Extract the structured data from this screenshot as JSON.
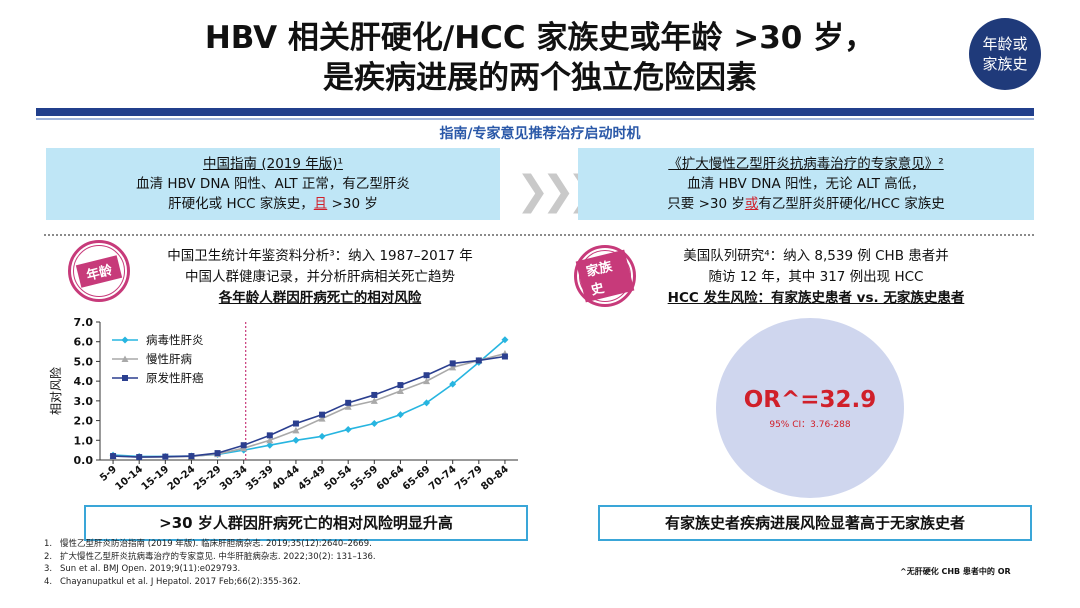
{
  "title": {
    "line1": "HBV 相关肝硬化/HCC 家族史或年龄 >30 岁，",
    "line2": "是疾病进展的两个独立危险因素"
  },
  "badge": {
    "line1": "年龄或",
    "line2": "家族史"
  },
  "subhead": "指南/专家意见推荐治疗启动时机",
  "guide_left": {
    "title": "中国指南 (2019 年版)¹",
    "line1": "血清 HBV DNA 阳性、ALT 正常，有乙型肝炎",
    "line2_pre": "肝硬化或 HCC 家族史，",
    "line2_red": "且",
    "line2_post": " >30 岁"
  },
  "guide_right": {
    "title": "《扩大慢性乙型肝炎抗病毒治疗的专家意见》²",
    "line1": "血清 HBV DNA 阳性，无论 ALT 高低，",
    "line2_pre": "只要 >30 岁",
    "line2_red": "或",
    "line2_post": "有乙型肝炎肝硬化/HCC 家族史"
  },
  "stamp_left": "年龄",
  "stamp_right": "家族史",
  "study_left": {
    "line1": "中国卫生统计年鉴资料分析³：纳入 1987–2017 年",
    "line2": "中国人群健康记录，并分析肝病相关死亡趋势",
    "line3": "各年龄人群因肝病死亡的相对风险"
  },
  "study_right": {
    "line1": "美国队列研究⁴：纳入 8,539 例 CHB 患者并",
    "line2": "随访 12 年，其中 317 例出现 HCC",
    "line3": "HCC 发生风险：有家族史患者 vs. 无家族史患者"
  },
  "or_value": "OR^=32.9",
  "or_ci": "95% CI：3.76-288",
  "concl_left": ">30 岁人群因肝病死亡的相对风险明显升高",
  "concl_right": "有家族史者疾病进展风险显著高于无家族史者",
  "refs": [
    {
      "n": "1.",
      "text": "慢性乙型肝炎防治指南 (2019 年版). 临床肝胆病杂志. 2019;35(12):2640–2669."
    },
    {
      "n": "2.",
      "text": "扩大慢性乙型肝炎抗病毒治疗的专家意见. 中华肝脏病杂志. 2022;30(2): 131–136."
    },
    {
      "n": "3.",
      "text": "Sun et al. BMJ Open. 2019;9(11):e029793."
    },
    {
      "n": "4.",
      "text": "Chayanupatkul et al. J Hepatol. 2017 Feb;66(2):355-362."
    }
  ],
  "footnote": "^无肝硬化 CHB 患者中的 OR",
  "chart_data": {
    "type": "line",
    "ylabel": "相对风险",
    "xlabel": "",
    "ylim": [
      0,
      7
    ],
    "yticks": [
      "0.0",
      "1.0",
      "2.0",
      "3.0",
      "4.0",
      "5.0",
      "6.0",
      "7.0"
    ],
    "categories": [
      "5-9",
      "10-14",
      "15-19",
      "20-24",
      "25-29",
      "30-34",
      "35-39",
      "40-44",
      "45-49",
      "50-54",
      "55-59",
      "60-64",
      "65-69",
      "70-74",
      "75-79",
      "80-84"
    ],
    "reference_line_category": "30-34",
    "legend_position": "top-left",
    "series": [
      {
        "name": "病毒性肝炎",
        "color": "#27b5e0",
        "marker": "diamond",
        "values": [
          0.25,
          0.18,
          0.18,
          0.2,
          0.28,
          0.5,
          0.75,
          1.0,
          1.2,
          1.55,
          1.85,
          2.3,
          2.9,
          3.85,
          4.95,
          6.1
        ]
      },
      {
        "name": "慢性肝病",
        "color": "#a9a9a9",
        "marker": "triangle",
        "values": [
          0.2,
          0.15,
          0.15,
          0.18,
          0.3,
          0.6,
          1.0,
          1.5,
          2.1,
          2.7,
          3.0,
          3.5,
          4.0,
          4.7,
          5.05,
          5.4
        ]
      },
      {
        "name": "原发性肝癌",
        "color": "#2b3f8f",
        "marker": "square",
        "values": [
          0.2,
          0.15,
          0.17,
          0.2,
          0.35,
          0.75,
          1.25,
          1.85,
          2.3,
          2.9,
          3.3,
          3.8,
          4.3,
          4.9,
          5.05,
          5.25
        ]
      }
    ]
  }
}
